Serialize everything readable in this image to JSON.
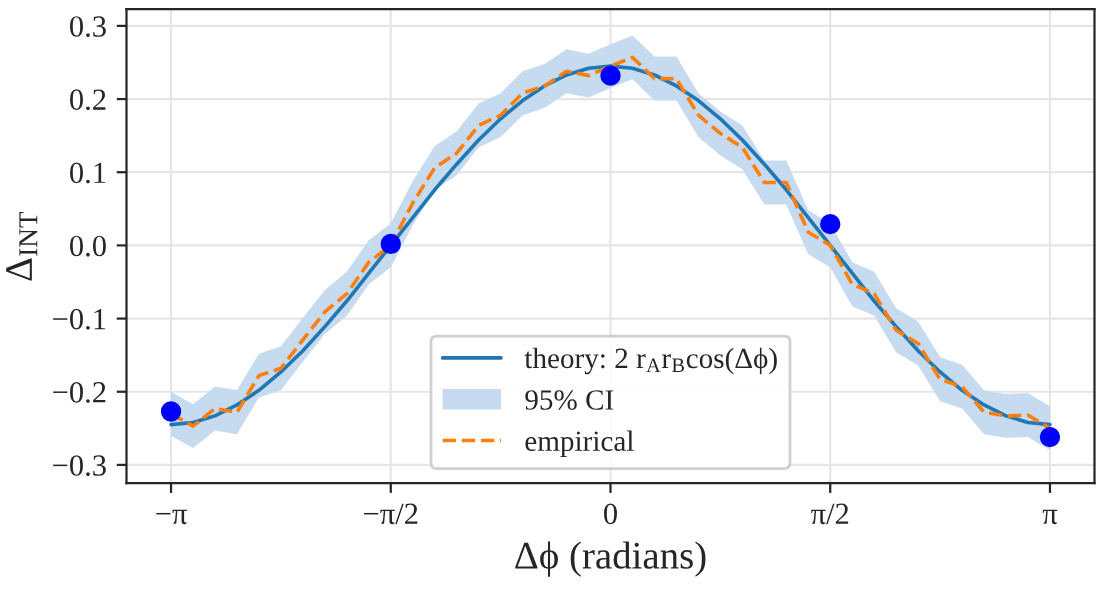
{
  "chart_data": {
    "type": "line",
    "xlabel": "Δϕ (radians)",
    "ylabel": "Δ$_{INT}$",
    "x": [
      -3.1416,
      -2.9845,
      -2.8274,
      -2.6704,
      -2.5133,
      -2.3562,
      -2.1991,
      -2.042,
      -1.885,
      -1.7279,
      -1.5708,
      -1.4137,
      -1.2566,
      -1.0996,
      -0.9425,
      -0.7854,
      -0.6283,
      -0.4712,
      -0.3142,
      -0.1571,
      0,
      0.1571,
      0.3142,
      0.4712,
      0.6283,
      0.7854,
      0.9425,
      1.0996,
      1.2566,
      1.4137,
      1.5708,
      1.7279,
      1.885,
      2.042,
      2.1991,
      2.3562,
      2.5133,
      2.6704,
      2.8274,
      2.9845,
      3.1416
    ],
    "series": [
      {
        "name": "theory: 2 r$_{A}$r$_{B}$cos(Δϕ)",
        "color": "#1f77b4",
        "line_style": "solid",
        "values": [
          -0.245,
          -0.242,
          -0.233,
          -0.218,
          -0.198,
          -0.173,
          -0.144,
          -0.111,
          -0.076,
          -0.038,
          0,
          0.038,
          0.076,
          0.111,
          0.144,
          0.173,
          0.198,
          0.218,
          0.233,
          0.242,
          0.245,
          0.242,
          0.233,
          0.218,
          0.198,
          0.173,
          0.144,
          0.111,
          0.076,
          0.038,
          0,
          -0.038,
          -0.076,
          -0.111,
          -0.144,
          -0.173,
          -0.198,
          -0.218,
          -0.233,
          -0.242,
          -0.245
        ]
      },
      {
        "name": "95% CI",
        "type": "area",
        "color": "#c6dbef",
        "values": [
          null,
          null,
          null,
          null,
          null,
          null,
          null,
          null,
          null,
          null,
          null,
          null,
          null,
          null,
          null,
          null,
          null,
          null,
          null,
          null,
          null,
          null,
          null,
          null,
          null,
          null,
          null,
          null,
          null,
          null,
          null,
          null,
          null,
          null,
          null,
          null,
          null,
          null,
          null,
          null,
          null
        ],
        "lower": [
          -0.26,
          -0.277,
          -0.253,
          -0.258,
          -0.208,
          -0.198,
          -0.159,
          -0.121,
          -0.096,
          -0.053,
          -0.03,
          0.028,
          0.076,
          0.096,
          0.134,
          0.148,
          0.178,
          0.188,
          0.208,
          0.202,
          0.215,
          0.227,
          0.198,
          0.198,
          0.148,
          0.123,
          0.104,
          0.056,
          0.056,
          -0.012,
          -0.03,
          -0.083,
          -0.096,
          -0.146,
          -0.164,
          -0.213,
          -0.223,
          -0.258,
          -0.263,
          -0.262,
          -0.28
        ],
        "upper": [
          -0.2,
          -0.217,
          -0.193,
          -0.198,
          -0.148,
          -0.138,
          -0.099,
          -0.061,
          -0.036,
          0.007,
          0.03,
          0.088,
          0.136,
          0.156,
          0.194,
          0.208,
          0.238,
          0.248,
          0.268,
          0.262,
          0.275,
          0.287,
          0.258,
          0.258,
          0.208,
          0.183,
          0.164,
          0.116,
          0.116,
          0.048,
          0.03,
          -0.023,
          -0.036,
          -0.086,
          -0.104,
          -0.153,
          -0.163,
          -0.198,
          -0.203,
          -0.202,
          -0.22
        ]
      },
      {
        "name": "empirical",
        "color": "#ff7f0e",
        "line_style": "dashed",
        "values": [
          -0.23,
          -0.247,
          -0.223,
          -0.228,
          -0.178,
          -0.168,
          -0.129,
          -0.091,
          -0.066,
          -0.023,
          0,
          0.058,
          0.106,
          0.126,
          0.164,
          0.178,
          0.208,
          0.218,
          0.238,
          0.232,
          0.245,
          0.257,
          0.228,
          0.228,
          0.178,
          0.153,
          0.134,
          0.086,
          0.086,
          0.018,
          0,
          -0.053,
          -0.066,
          -0.116,
          -0.134,
          -0.183,
          -0.193,
          -0.228,
          -0.233,
          -0.232,
          -0.25
        ]
      },
      {
        "type": "scatter",
        "color": "#0000ff",
        "marker": "circle",
        "x": [
          -3.1416,
          -1.5708,
          0,
          1.5708,
          3.1416
        ],
        "values": [
          -0.227,
          0.002,
          0.232,
          0.029,
          -0.262
        ]
      }
    ],
    "xlim": [
      -3.46,
      3.46
    ],
    "ylim": [
      -0.325,
      0.323
    ],
    "xticks": [
      {
        "value": -3.1416,
        "label": "−π"
      },
      {
        "value": -1.5708,
        "label": "−π/2"
      },
      {
        "value": 0,
        "label": "0"
      },
      {
        "value": 1.5708,
        "label": "π/2"
      },
      {
        "value": 3.1416,
        "label": "π"
      }
    ],
    "yticks": [
      {
        "value": -0.3,
        "label": "−0.3"
      },
      {
        "value": -0.2,
        "label": "−0.2"
      },
      {
        "value": -0.1,
        "label": "−0.1"
      },
      {
        "value": 0,
        "label": "0.0"
      },
      {
        "value": 0.1,
        "label": "0.1"
      },
      {
        "value": 0.2,
        "label": "0.2"
      },
      {
        "value": 0.3,
        "label": "0.3"
      }
    ],
    "grid": true,
    "legend": "bottom"
  }
}
